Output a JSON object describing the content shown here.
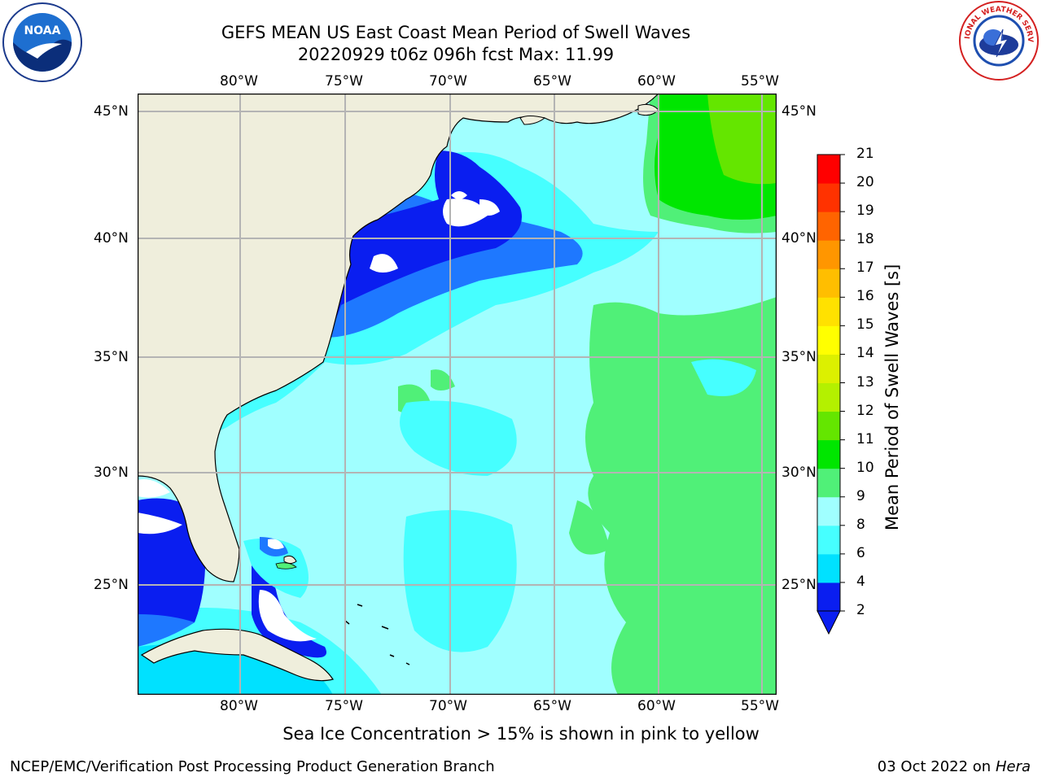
{
  "title": {
    "line1": "GEFS MEAN US East Coast Mean Period of Swell Waves",
    "line2": "20220929 t06z 096h fcst   Max: 11.99"
  },
  "logos": {
    "left": "NOAA",
    "right": "NATIONAL WEATHER SERVICE"
  },
  "map": {
    "lon_labels": [
      "80°W",
      "75°W",
      "70°W",
      "65°W",
      "60°W",
      "55°W"
    ],
    "lat_labels": [
      "45°N",
      "40°N",
      "35°N",
      "30°N",
      "25°N"
    ]
  },
  "colorbar": {
    "title": "Mean Period of Swell Waves [s]",
    "levels": [
      "2",
      "4",
      "6",
      "8",
      "9",
      "10",
      "11",
      "12",
      "13",
      "14",
      "15",
      "16",
      "17",
      "18",
      "19",
      "20",
      "21"
    ],
    "colors": [
      "#0a1ef0",
      "#1e78ff",
      "#00e1ff",
      "#46ffff",
      "#a0ffff",
      "#50f078",
      "#00e600",
      "#64e600",
      "#b4f000",
      "#dcf000",
      "#ffff00",
      "#ffe100",
      "#ffbe00",
      "#ff9600",
      "#ff6400",
      "#ff3200",
      "#ff0000"
    ]
  },
  "note": "Sea Ice Concentration > 15% is shown in pink to yellow",
  "footer": {
    "left": "NCEP/EMC/Verification Post Processing Product Generation Branch",
    "right_date": "03 Oct 2022 on ",
    "right_host": "Hera"
  }
}
